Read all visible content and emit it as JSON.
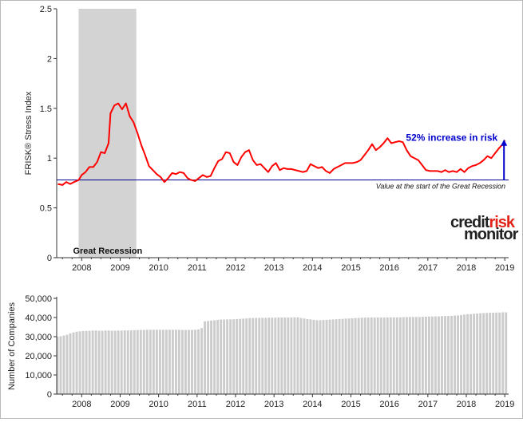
{
  "chart_data": [
    {
      "type": "line",
      "ylabel": "FRISK® Stress Index",
      "ylim": [
        0,
        2.5
      ],
      "yticks": [
        "0",
        "0.5",
        "1",
        "1.5",
        "2",
        "2.5"
      ],
      "xticks": [
        "2008",
        "2009",
        "2010",
        "2011",
        "2012",
        "2013",
        "2014",
        "2015",
        "2016",
        "2017",
        "2018",
        "2019"
      ],
      "xlim": [
        2007.35,
        2019.1
      ],
      "recession": {
        "start": 2007.92,
        "end": 2009.42,
        "label": "Great Recession"
      },
      "reference_line": {
        "value": 0.78,
        "label": "Value at the start of the Great Recession"
      },
      "annotation": {
        "text": "52% increase in risk",
        "x": 2019.0,
        "from": 0.78,
        "to": 1.18
      },
      "series": [
        {
          "color": "#ff0000",
          "x": [
            2007.38,
            2007.5,
            2007.6,
            2007.7,
            2007.8,
            2007.92,
            2008.0,
            2008.1,
            2008.2,
            2008.3,
            2008.4,
            2008.5,
            2008.6,
            2008.7,
            2008.75,
            2008.85,
            2008.95,
            2009.05,
            2009.15,
            2009.25,
            2009.35,
            2009.45,
            2009.55,
            2009.65,
            2009.75,
            2009.85,
            2009.95,
            2010.05,
            2010.15,
            2010.25,
            2010.35,
            2010.45,
            2010.55,
            2010.65,
            2010.75,
            2010.85,
            2010.95,
            2011.05,
            2011.15,
            2011.25,
            2011.35,
            2011.45,
            2011.55,
            2011.65,
            2011.75,
            2011.85,
            2011.95,
            2012.05,
            2012.15,
            2012.25,
            2012.35,
            2012.45,
            2012.55,
            2012.65,
            2012.75,
            2012.85,
            2012.95,
            2013.05,
            2013.15,
            2013.25,
            2013.35,
            2013.45,
            2013.55,
            2013.65,
            2013.75,
            2013.85,
            2013.95,
            2014.05,
            2014.15,
            2014.25,
            2014.35,
            2014.45,
            2014.55,
            2014.65,
            2014.75,
            2014.85,
            2014.95,
            2015.05,
            2015.15,
            2015.25,
            2015.35,
            2015.45,
            2015.55,
            2015.65,
            2015.75,
            2015.85,
            2015.95,
            2016.05,
            2016.15,
            2016.25,
            2016.35,
            2016.45,
            2016.55,
            2016.65,
            2016.75,
            2016.85,
            2016.95,
            2017.05,
            2017.15,
            2017.25,
            2017.35,
            2017.45,
            2017.55,
            2017.65,
            2017.75,
            2017.85,
            2017.95,
            2018.05,
            2018.15,
            2018.25,
            2018.35,
            2018.45,
            2018.55,
            2018.65,
            2018.75,
            2018.85,
            2018.95,
            2019.0
          ],
          "y": [
            0.74,
            0.73,
            0.76,
            0.74,
            0.76,
            0.78,
            0.83,
            0.86,
            0.91,
            0.91,
            0.96,
            1.06,
            1.05,
            1.15,
            1.45,
            1.53,
            1.55,
            1.49,
            1.55,
            1.42,
            1.36,
            1.25,
            1.13,
            1.03,
            0.92,
            0.88,
            0.84,
            0.81,
            0.76,
            0.8,
            0.85,
            0.84,
            0.86,
            0.85,
            0.8,
            0.78,
            0.77,
            0.8,
            0.83,
            0.81,
            0.82,
            0.9,
            0.97,
            0.99,
            1.06,
            1.05,
            0.96,
            0.93,
            1.01,
            1.06,
            1.08,
            0.98,
            0.93,
            0.94,
            0.9,
            0.86,
            0.92,
            0.95,
            0.88,
            0.9,
            0.89,
            0.89,
            0.88,
            0.87,
            0.86,
            0.87,
            0.94,
            0.92,
            0.9,
            0.91,
            0.87,
            0.85,
            0.89,
            0.91,
            0.93,
            0.95,
            0.95,
            0.95,
            0.96,
            0.98,
            1.03,
            1.08,
            1.14,
            1.08,
            1.11,
            1.15,
            1.2,
            1.15,
            1.16,
            1.17,
            1.16,
            1.08,
            1.02,
            1.0,
            0.98,
            0.93,
            0.88,
            0.87,
            0.87,
            0.87,
            0.86,
            0.88,
            0.86,
            0.87,
            0.86,
            0.89,
            0.86,
            0.9,
            0.92,
            0.93,
            0.95,
            0.98,
            1.02,
            1.0,
            1.05,
            1.1,
            1.14,
            1.18
          ]
        }
      ]
    },
    {
      "type": "bar",
      "ylabel": "Number of Companies",
      "ylim": [
        0,
        50000
      ],
      "yticks": [
        "0",
        "10,000",
        "20,000",
        "30,000",
        "40,000",
        "50,000"
      ],
      "xticks": [
        "2008",
        "2009",
        "2010",
        "2011",
        "2012",
        "2013",
        "2014",
        "2015",
        "2016",
        "2017",
        "2018",
        "2019"
      ],
      "color": "#cccccc",
      "x_start": 2007.37,
      "x_step": 0.0833,
      "values": [
        30000,
        30200,
        30600,
        31000,
        31700,
        32200,
        32600,
        32800,
        32900,
        33000,
        33100,
        33200,
        33200,
        33100,
        33100,
        33200,
        33200,
        33100,
        33100,
        33200,
        33200,
        33300,
        33300,
        33300,
        33400,
        33400,
        33500,
        33500,
        33600,
        33600,
        33600,
        33600,
        33600,
        33600,
        33600,
        33600,
        33600,
        33600,
        33600,
        33500,
        33500,
        33500,
        33500,
        33600,
        33800,
        34500,
        38000,
        38200,
        38400,
        38600,
        38800,
        38900,
        38900,
        39000,
        39000,
        39100,
        39200,
        39300,
        39400,
        39500,
        39700,
        39700,
        39800,
        39800,
        39800,
        39800,
        39900,
        39900,
        39900,
        40000,
        40000,
        40000,
        40000,
        40000,
        40100,
        40100,
        39800,
        39500,
        39200,
        39000,
        38800,
        38600,
        38600,
        38700,
        38800,
        38900,
        39000,
        39100,
        39200,
        39300,
        39400,
        39500,
        39600,
        39700,
        39800,
        39900,
        39900,
        40000,
        40000,
        40000,
        40000,
        40000,
        40000,
        40100,
        40100,
        40100,
        40100,
        40100,
        40200,
        40200,
        40300,
        40300,
        40300,
        40300,
        40400,
        40400,
        40500,
        40500,
        40600,
        40600,
        40700,
        40800,
        40800,
        40900,
        41000,
        41100,
        41300,
        41500,
        41700,
        41800,
        41900,
        42100,
        42200,
        42300,
        42400,
        42500,
        42500,
        42600,
        42600,
        42700,
        42700,
        42800,
        42800,
        42900,
        43000,
        43000,
        42900,
        42800,
        42700,
        42600,
        42500,
        42400,
        42300,
        42200
      ]
    }
  ],
  "logo": {
    "line1_a": "credit",
    "line1_b": "risk",
    "line2": "monitor",
    "accent": "#e2231a"
  },
  "colors": {
    "recession": "#d3d3d3",
    "reference": "#00008b",
    "series": "#ff0000",
    "annotation": "#0000cc"
  }
}
